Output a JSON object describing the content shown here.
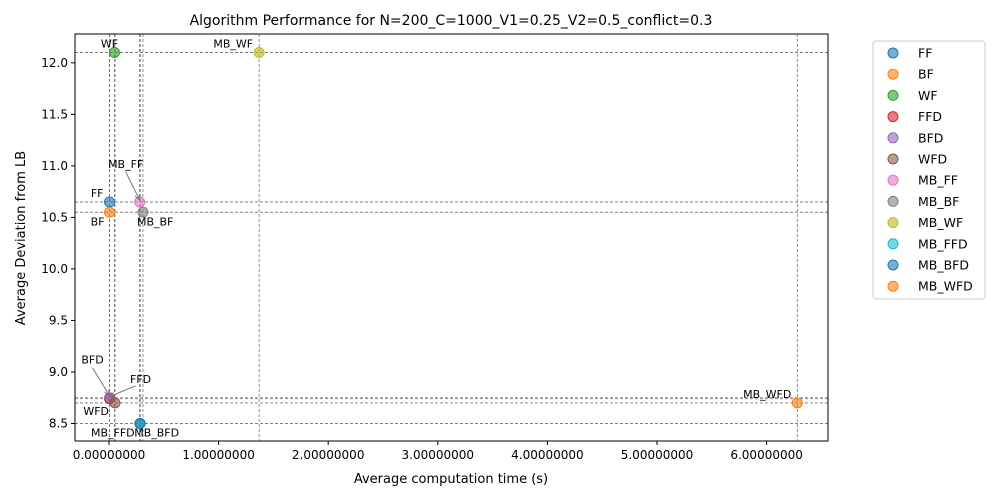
{
  "chart_data": {
    "type": "scatter",
    "title": "Algorithm Performance for N=200_C=1000_V1=0.25_V2=0.5_conflict=0.3",
    "xlabel": "Average computation time (s)",
    "ylabel": "Average Deviation from LB",
    "xlim": [
      -0.031,
      0.656
    ],
    "ylim": [
      8.33,
      12.28
    ],
    "xticks": [
      0.0,
      1.0,
      2.0,
      3.0,
      4.0,
      5.0,
      6.0
    ],
    "xtick_labels": [
      "0.00000000",
      "1.00000000",
      "2.00000000",
      "3.00000000",
      "4.00000000",
      "5.00000000",
      "6.00000000"
    ],
    "xtick_scale": 0.1,
    "yticks": [
      8.5,
      9.0,
      9.5,
      10.0,
      10.5,
      11.0,
      11.5,
      12.0
    ],
    "ytick_labels": [
      "8.5",
      "9.0",
      "9.5",
      "10.0",
      "10.5",
      "11.0",
      "11.5",
      "12.0"
    ],
    "legend_position": "outside-right",
    "grid": false,
    "reference_lines": "dashed vertical and horizontal lines through each point",
    "series": [
      {
        "name": "FF",
        "x": 0.0005,
        "y": 10.65,
        "color": "#1f77b4",
        "label": "FF",
        "label_pos": "upper-left"
      },
      {
        "name": "BF",
        "x": 0.0005,
        "y": 10.55,
        "color": "#ff7f0e",
        "label": "BF",
        "label_pos": "lower-left"
      },
      {
        "name": "WF",
        "x": 0.005,
        "y": 12.1,
        "color": "#2ca02c",
        "label": "WF",
        "label_pos": "top"
      },
      {
        "name": "FFD",
        "x": 0.0005,
        "y": 8.74,
        "color": "#d62728",
        "label": "FFD",
        "label_pos": "arrow-upper-right"
      },
      {
        "name": "BFD",
        "x": 0.0005,
        "y": 8.75,
        "color": "#9467bd",
        "label": "BFD",
        "label_pos": "arrow-upper-left"
      },
      {
        "name": "WFD",
        "x": 0.0055,
        "y": 8.7,
        "color": "#8c564b",
        "label": "WFD",
        "label_pos": "left"
      },
      {
        "name": "MB_FF",
        "x": 0.028,
        "y": 10.65,
        "color": "#e377c2",
        "label": "MB_FF",
        "label_pos": "arrow-up"
      },
      {
        "name": "MB_BF",
        "x": 0.031,
        "y": 10.55,
        "color": "#7f7f7f",
        "label": "MB_BF",
        "label_pos": "lower-right"
      },
      {
        "name": "MB_WF",
        "x": 0.137,
        "y": 12.1,
        "color": "#bcbd22",
        "label": "MB_WF",
        "label_pos": "upper-left"
      },
      {
        "name": "MB_FFD",
        "x": 0.028,
        "y": 8.5,
        "color": "#17becf",
        "label": "MB_FFD",
        "label_pos": "lower-left"
      },
      {
        "name": "MB_BFD",
        "x": 0.0285,
        "y": 8.5,
        "color": "#1f77b4",
        "label": "MB_BFD",
        "label_pos": "lower-right"
      },
      {
        "name": "MB_WFD",
        "x": 0.628,
        "y": 8.7,
        "color": "#ff7f0e",
        "label": "MB_WFD",
        "label_pos": "upper-left"
      }
    ]
  }
}
